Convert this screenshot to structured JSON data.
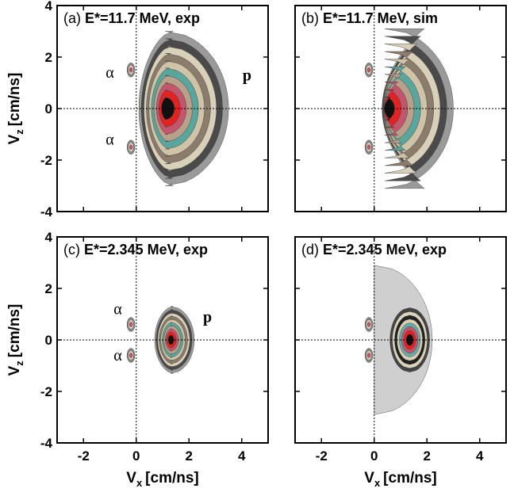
{
  "chart_data": [
    {
      "type": "contour",
      "label": "(a)",
      "title": "E*=11.7 MeV, exp",
      "xlim": [
        -3,
        5
      ],
      "ylim": [
        -4,
        4
      ],
      "xticks": [
        -2,
        0,
        2,
        4
      ],
      "yticks": [
        -4,
        -2,
        0,
        2,
        4
      ],
      "ylabel": {
        "main": "V",
        "sub": "z",
        "unit": "[cm/ns]"
      },
      "annotations": [
        "α",
        "α",
        "p"
      ]
    },
    {
      "type": "contour",
      "label": "(b)",
      "title": "E*=11.7 MeV, sim",
      "xlim": [
        -3,
        5
      ],
      "ylim": [
        -4,
        4
      ],
      "xticks": [
        -2,
        0,
        2,
        4
      ],
      "yticks": [
        -4,
        -2,
        0,
        2,
        4
      ]
    },
    {
      "type": "contour",
      "label": "(c)",
      "title": "E*=2.345 MeV, exp",
      "xlim": [
        -3,
        5
      ],
      "ylim": [
        -4,
        4
      ],
      "xticks": [
        -2,
        0,
        2,
        4
      ],
      "yticks": [
        -4,
        -2,
        0,
        2,
        4
      ],
      "xlabel": {
        "main": "V",
        "sub": "x",
        "unit": "[cm/ns]"
      },
      "ylabel": {
        "main": "V",
        "sub": "z",
        "unit": "[cm/ns]"
      },
      "annotations": [
        "α",
        "α",
        "p"
      ]
    },
    {
      "type": "contour",
      "label": "(d)",
      "title": "E*=2.345 MeV, exp",
      "xlim": [
        -3,
        5
      ],
      "ylim": [
        -4,
        4
      ],
      "xticks": [
        -2,
        0,
        2,
        4
      ],
      "yticks": [
        -4,
        -2,
        0,
        2,
        4
      ],
      "xlabel": {
        "main": "V",
        "sub": "x",
        "unit": "[cm/ns]"
      }
    }
  ]
}
